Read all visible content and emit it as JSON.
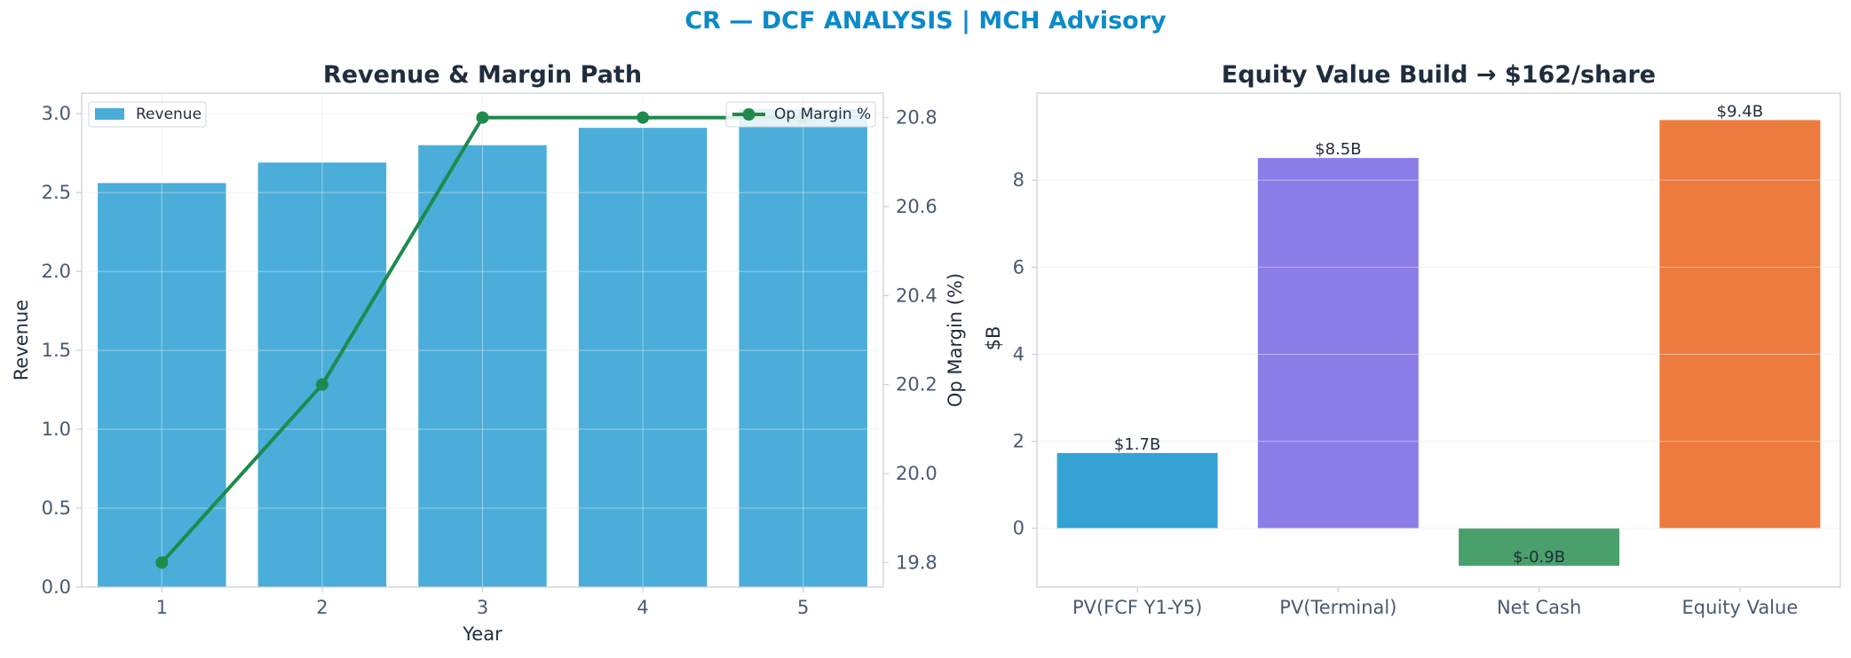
{
  "suptitle": "CR — DCF ANALYSIS | MCH Advisory",
  "colors": {
    "title_accent": "#0b8ac9",
    "revenue_bar": "#4badd9",
    "op_margin_line": "#1e8a4c",
    "pv_fcf": "#34a3d4",
    "pv_terminal": "#8b7ee9",
    "net_cash": "#4aa06a",
    "equity_value": "#ed7b3d"
  },
  "chart_data": [
    {
      "type": "bar",
      "title": "Revenue & Margin Path",
      "xlabel": "Year",
      "ylabel": "Revenue",
      "y2label": "Op Margin (%)",
      "categories": [
        1,
        2,
        3,
        4,
        5
      ],
      "xticks": [
        "1",
        "2",
        "3",
        "4",
        "5"
      ],
      "ylim": [
        0,
        3.13
      ],
      "yticks": [
        "0.0",
        "0.5",
        "1.0",
        "1.5",
        "2.0",
        "2.5",
        "3.0"
      ],
      "y2lim": [
        19.745,
        20.855
      ],
      "y2ticks": [
        "19.8",
        "20.0",
        "20.2",
        "20.4",
        "20.6",
        "20.8"
      ],
      "grid": true,
      "series": [
        {
          "name": "Revenue",
          "type": "bar",
          "axis": "left",
          "values": [
            2.56,
            2.69,
            2.8,
            2.91,
            3.03
          ]
        },
        {
          "name": "Op Margin %",
          "type": "line",
          "axis": "right",
          "values": [
            19.8,
            20.2,
            20.8,
            20.8,
            20.8
          ]
        }
      ],
      "legend": [
        {
          "label": "Revenue",
          "position": "top-left"
        },
        {
          "label": "Op Margin %",
          "position": "top-right"
        }
      ]
    },
    {
      "type": "bar",
      "title": "Equity Value Build → $162/share",
      "xlabel": "",
      "ylabel": "$B",
      "categories": [
        "PV(FCF Y1-Y5)",
        "PV(Terminal)",
        "Net Cash",
        "Equity Value"
      ],
      "values": [
        1.73,
        8.51,
        -0.86,
        9.38
      ],
      "data_labels": [
        "$1.7B",
        "$8.5B",
        "$-0.9B",
        "$9.4B"
      ],
      "ylim": [
        -1.35,
        10.0
      ],
      "yticks": [
        "0",
        "2",
        "4",
        "6",
        "8"
      ],
      "grid": true
    }
  ]
}
